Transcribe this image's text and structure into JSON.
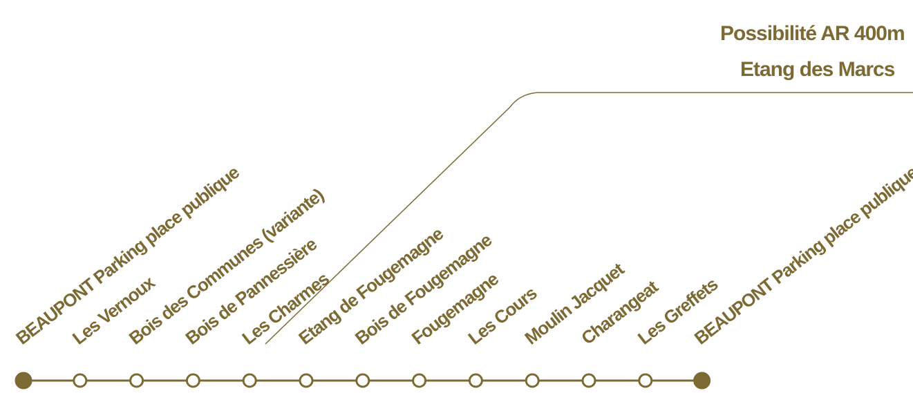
{
  "style": {
    "accent": "#7c6a35",
    "background": "#ffffff"
  },
  "note": {
    "line1": "Possibilité AR 400m",
    "line2": "Etang des Marcs"
  },
  "stops": [
    {
      "label": "BEAUPONT Parking place publique",
      "type": "filled"
    },
    {
      "label": "Les Vernoux",
      "type": "open"
    },
    {
      "label": "Bois des Communes  (variante)",
      "type": "open"
    },
    {
      "label": "Bois de Pannessière",
      "type": "open"
    },
    {
      "label": "Les Charmes",
      "type": "open"
    },
    {
      "label": "Etang de Fougemagne",
      "type": "open"
    },
    {
      "label": "Bois de Fougemagne",
      "type": "open"
    },
    {
      "label": "Fougemagne",
      "type": "open"
    },
    {
      "label": "Les Cours",
      "type": "open"
    },
    {
      "label": "Moulin  Jacquet",
      "type": "open"
    },
    {
      "label": "Charangeat",
      "type": "open"
    },
    {
      "label": "Les Greffets",
      "type": "open"
    },
    {
      "label": "BEAUPONT Parking place publique",
      "type": "filled"
    }
  ]
}
